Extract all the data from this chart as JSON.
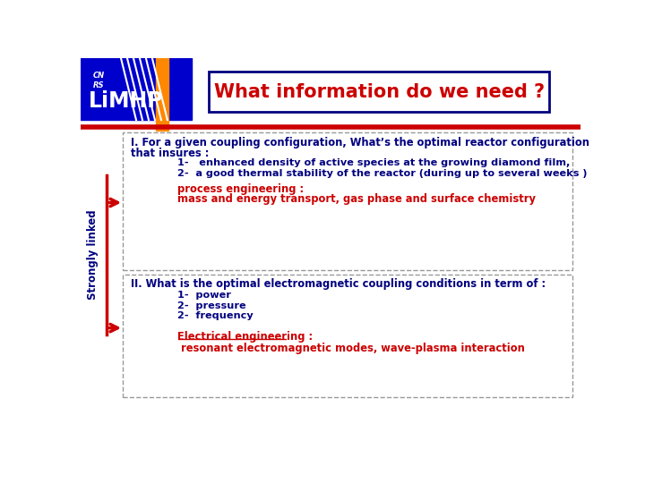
{
  "title": "What information do we need ?",
  "title_color": "#cc0000",
  "title_box_edge_color": "#000080",
  "background_color": "#ffffff",
  "header_bg": "#0000cc",
  "header_bar_color": "#ff8800",
  "red_line_color": "#cc0000",
  "section1_line1": "I. For a given coupling configuration, What’s the optimal reactor configuration",
  "section1_line2": "that insures :",
  "section1_item1": "1-   enhanced density of active species at the growing diamond film,",
  "section1_item2": "2-  a good thermal stability of the reactor (during up to several weeks )",
  "section1_red1": "process engineering :",
  "section1_red2": "mass and energy transport, gas phase and surface chemistry",
  "section2_text_main": "II. What is the optimal electromagnetic coupling conditions in term of :",
  "section2_item1": "1-  power",
  "section2_item2": "2-  pressure",
  "section2_item3": "2-  frequency",
  "section2_red1": "Electrical engineering :",
  "section2_red2": " resonant electromagnetic modes, wave-plasma interaction",
  "strongly_linked": "Strongly linked",
  "dark_blue": "#000080",
  "red": "#cc0000",
  "gray_dash": "#999999"
}
